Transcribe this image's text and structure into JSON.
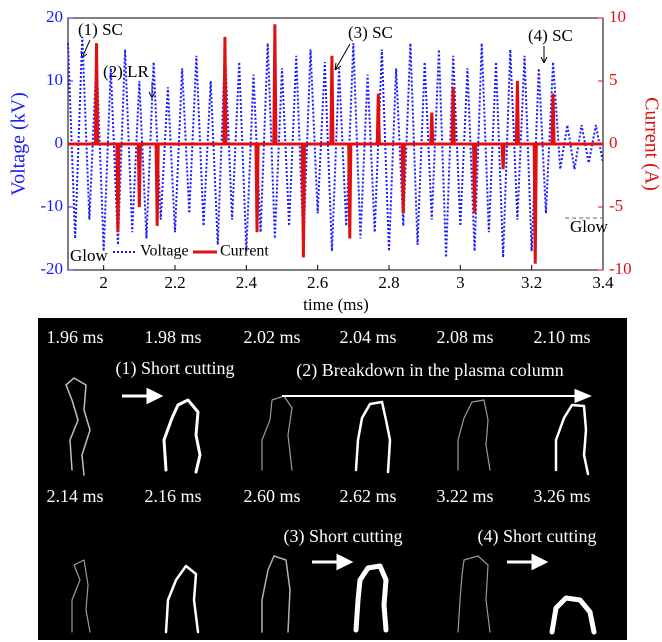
{
  "chart_data": {
    "type": "line",
    "x_label": "time (ms)",
    "y_label": "Voltage (kV)",
    "y2_label": "Current (A)",
    "xlim": [
      1.9,
      3.4
    ],
    "xticks": [
      2,
      2.2,
      2.4,
      2.6,
      2.8,
      3,
      3.2,
      3.4
    ],
    "ylim": [
      -20,
      20
    ],
    "yticks": [
      -20,
      -10,
      0,
      10,
      20
    ],
    "y2lim": [
      -10,
      10
    ],
    "y2ticks": [
      -10,
      -5,
      0,
      5,
      10
    ],
    "legend": "lower left",
    "annotations": [
      "(1) SC",
      "(2) LR",
      "(3) SC",
      "(4) SC",
      "Glow",
      "Glow"
    ],
    "series": [
      {
        "name": "Voltage",
        "color": "#1a1aff",
        "axis": "y",
        "x": [
          1.9,
          1.92,
          1.94,
          1.96,
          1.98,
          2.0,
          2.02,
          2.04,
          2.06,
          2.08,
          2.1,
          2.12,
          2.14,
          2.16,
          2.18,
          2.2,
          2.22,
          2.24,
          2.26,
          2.28,
          2.3,
          2.32,
          2.34,
          2.36,
          2.38,
          2.4,
          2.42,
          2.44,
          2.46,
          2.48,
          2.5,
          2.52,
          2.54,
          2.56,
          2.58,
          2.6,
          2.62,
          2.64,
          2.66,
          2.68,
          2.7,
          2.72,
          2.74,
          2.76,
          2.78,
          2.8,
          2.82,
          2.84,
          2.86,
          2.88,
          2.9,
          2.92,
          2.94,
          2.96,
          2.98,
          3.0,
          3.02,
          3.04,
          3.06,
          3.08,
          3.1,
          3.12,
          3.14,
          3.16,
          3.18,
          3.2,
          3.22,
          3.24,
          3.26,
          3.28,
          3.3,
          3.32,
          3.34,
          3.36,
          3.38,
          3.4
        ],
        "values": [
          16,
          -15,
          17,
          -12,
          14,
          -17,
          12,
          -16,
          15,
          -14,
          10,
          -15,
          13,
          -12,
          9,
          -14,
          12,
          -11,
          14,
          -13,
          10,
          -16,
          15,
          -12,
          13,
          -17,
          11,
          -14,
          16,
          -15,
          12,
          -13,
          14,
          -16,
          15,
          -11,
          13,
          -17,
          12,
          -13,
          16,
          -15,
          11,
          -14,
          15,
          -17,
          12,
          -13,
          16,
          -16,
          13,
          -12,
          15,
          -18,
          14,
          -13,
          12,
          -17,
          16,
          -14,
          13,
          -18,
          15,
          -12,
          14,
          -17,
          12,
          -11,
          13,
          -4,
          3,
          -4,
          3,
          -3,
          3,
          -3
        ]
      },
      {
        "name": "Current",
        "color": "#e01010",
        "axis": "y2",
        "x": [
          1.9,
          1.977,
          1.98,
          1.983,
          2.037,
          2.04,
          2.043,
          2.097,
          2.1,
          2.103,
          2.147,
          2.15,
          2.153,
          2.337,
          2.34,
          2.343,
          2.427,
          2.43,
          2.433,
          2.477,
          2.48,
          2.483,
          2.557,
          2.56,
          2.563,
          2.637,
          2.64,
          2.643,
          2.687,
          2.69,
          2.693,
          2.767,
          2.77,
          2.773,
          2.837,
          2.84,
          2.843,
          2.917,
          2.92,
          2.923,
          2.977,
          2.98,
          2.983,
          3.037,
          3.04,
          3.043,
          3.117,
          3.12,
          3.123,
          3.157,
          3.16,
          3.163,
          3.207,
          3.21,
          3.213,
          3.257,
          3.26,
          3.263,
          3.4
        ],
        "values": [
          0,
          0,
          8,
          0,
          0,
          -7,
          0,
          0,
          -5,
          0,
          0,
          -6.5,
          0,
          0,
          8.5,
          0,
          0,
          -7,
          0,
          0,
          9.5,
          0,
          0,
          -9,
          0,
          0,
          7,
          0,
          0,
          -7.5,
          0,
          0,
          4,
          0,
          0,
          -5.5,
          0,
          0,
          2.5,
          0,
          0,
          4.5,
          0,
          0,
          -5.5,
          0,
          0,
          -2,
          0,
          0,
          5,
          0,
          0,
          -9.5,
          0,
          0,
          4,
          0,
          0
        ]
      }
    ]
  },
  "panel": {
    "row1": [
      "1.96 ms",
      "1.98 ms",
      "2.02 ms",
      "2.04 ms",
      "2.08 ms",
      "2.10 ms"
    ],
    "row2": [
      "2.14 ms",
      "2.16 ms",
      "2.60 ms",
      "2.62 ms",
      "3.22 ms",
      "3.26 ms"
    ],
    "captions": [
      "(1) Short cutting",
      "(2) Breakdown in the plasma column",
      "(3) Short cutting",
      "(4) Short cutting"
    ]
  }
}
